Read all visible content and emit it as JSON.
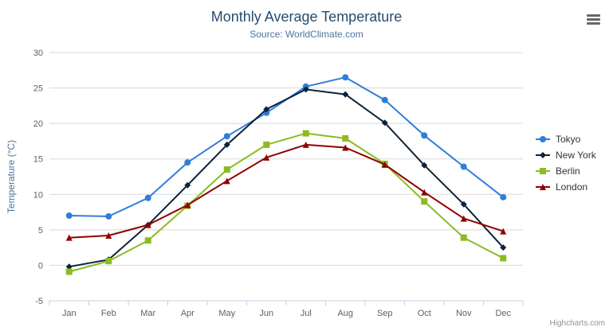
{
  "header": {
    "title": "Monthly Average Temperature",
    "subtitle": "Source: WorldClimate.com"
  },
  "icons": {
    "export_menu": "hamburger"
  },
  "credits": "Highcharts.com",
  "chart_data": {
    "type": "line",
    "title": "Monthly Average Temperature",
    "subtitle": "Source: WorldClimate.com",
    "xlabel": "",
    "ylabel": "Temperature (°C)",
    "categories": [
      "Jan",
      "Feb",
      "Mar",
      "Apr",
      "May",
      "Jun",
      "Jul",
      "Aug",
      "Sep",
      "Oct",
      "Nov",
      "Dec"
    ],
    "ylim": [
      -5,
      30
    ],
    "ytick_interval": 5,
    "grid": true,
    "legend_position": "right",
    "series": [
      {
        "name": "Tokyo",
        "color": "#2f7ed8",
        "marker": "circle",
        "values": [
          7.0,
          6.9,
          9.5,
          14.5,
          18.2,
          21.5,
          25.2,
          26.5,
          23.3,
          18.3,
          13.9,
          9.6
        ]
      },
      {
        "name": "New York",
        "color": "#0d233a",
        "marker": "diamond",
        "values": [
          -0.2,
          0.8,
          5.7,
          11.3,
          17.0,
          22.0,
          24.8,
          24.1,
          20.1,
          14.1,
          8.6,
          2.5
        ]
      },
      {
        "name": "Berlin",
        "color": "#8bbc21",
        "marker": "square",
        "values": [
          -0.9,
          0.6,
          3.5,
          8.4,
          13.5,
          17.0,
          18.6,
          17.9,
          14.3,
          9.0,
          3.9,
          1.0
        ]
      },
      {
        "name": "London",
        "color": "#910000",
        "marker": "triangle",
        "values": [
          3.9,
          4.2,
          5.7,
          8.5,
          11.9,
          15.2,
          17.0,
          16.6,
          14.2,
          10.3,
          6.6,
          4.8
        ]
      }
    ]
  }
}
